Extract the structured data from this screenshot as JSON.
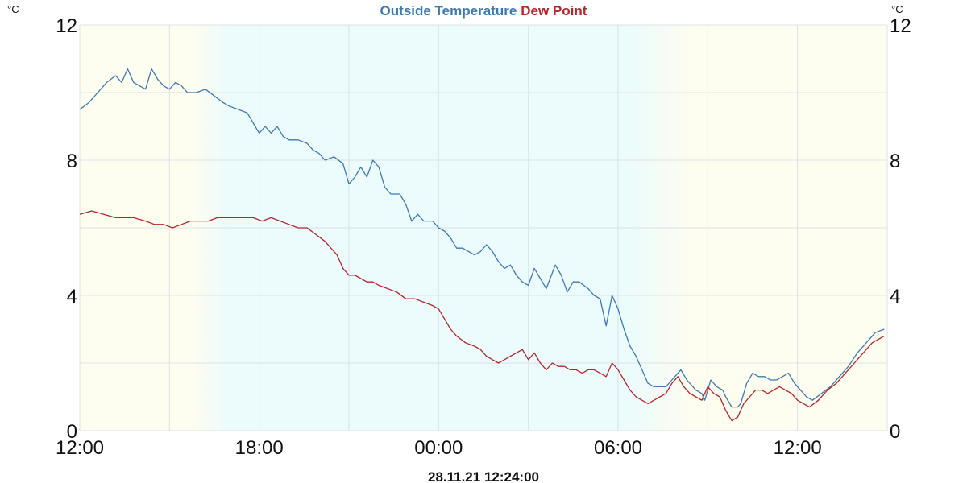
{
  "chart_data": {
    "type": "line",
    "title_parts": [
      {
        "text": "Outside Temperature",
        "color": "#3d79b2"
      },
      {
        "text": "Dew Point",
        "color": "#b3272d"
      }
    ],
    "unit_left": "°C",
    "unit_right": "°C",
    "timestamp": "28.11.21 12:24:00",
    "x_range_hours": [
      0,
      27
    ],
    "ylim": [
      0,
      12
    ],
    "x_ticks": [
      {
        "label": "12:00",
        "hour": 0
      },
      {
        "label": "18:00",
        "hour": 6
      },
      {
        "label": "00:00",
        "hour": 12
      },
      {
        "label": "06:00",
        "hour": 18
      },
      {
        "label": "12:00",
        "hour": 24
      }
    ],
    "y_ticks": [
      {
        "label": "12",
        "value": 12
      },
      {
        "label": "8",
        "value": 8
      },
      {
        "label": "4",
        "value": 4
      },
      {
        "label": "0",
        "value": 0
      }
    ],
    "background_bands": {
      "day_color": "#fdfdf0",
      "night_color": "#ecfbfc",
      "night_start_hour": 4.3,
      "night_end_hour": 19.4
    },
    "grid": true,
    "series": [
      {
        "name": "Outside Temperature",
        "color": "#3d79b2",
        "points": [
          [
            0,
            9.5
          ],
          [
            0.3,
            9.7
          ],
          [
            0.6,
            10.0
          ],
          [
            0.9,
            10.3
          ],
          [
            1.2,
            10.5
          ],
          [
            1.4,
            10.3
          ],
          [
            1.6,
            10.7
          ],
          [
            1.8,
            10.3
          ],
          [
            2.0,
            10.2
          ],
          [
            2.2,
            10.1
          ],
          [
            2.4,
            10.7
          ],
          [
            2.6,
            10.4
          ],
          [
            2.8,
            10.2
          ],
          [
            3.0,
            10.1
          ],
          [
            3.2,
            10.3
          ],
          [
            3.4,
            10.2
          ],
          [
            3.6,
            10.0
          ],
          [
            3.9,
            10.0
          ],
          [
            4.2,
            10.1
          ],
          [
            4.5,
            9.9
          ],
          [
            4.8,
            9.7
          ],
          [
            5.0,
            9.6
          ],
          [
            5.3,
            9.5
          ],
          [
            5.6,
            9.4
          ],
          [
            5.8,
            9.1
          ],
          [
            6.0,
            8.8
          ],
          [
            6.2,
            9.0
          ],
          [
            6.4,
            8.8
          ],
          [
            6.6,
            9.0
          ],
          [
            6.8,
            8.7
          ],
          [
            7.0,
            8.6
          ],
          [
            7.3,
            8.6
          ],
          [
            7.6,
            8.5
          ],
          [
            7.8,
            8.3
          ],
          [
            8.0,
            8.2
          ],
          [
            8.2,
            8.0
          ],
          [
            8.5,
            8.1
          ],
          [
            8.8,
            7.9
          ],
          [
            9.0,
            7.3
          ],
          [
            9.2,
            7.5
          ],
          [
            9.4,
            7.8
          ],
          [
            9.6,
            7.5
          ],
          [
            9.8,
            8.0
          ],
          [
            10.0,
            7.8
          ],
          [
            10.2,
            7.2
          ],
          [
            10.4,
            7.0
          ],
          [
            10.7,
            7.0
          ],
          [
            10.9,
            6.7
          ],
          [
            11.1,
            6.2
          ],
          [
            11.3,
            6.4
          ],
          [
            11.5,
            6.2
          ],
          [
            11.8,
            6.2
          ],
          [
            12.0,
            6.0
          ],
          [
            12.2,
            5.9
          ],
          [
            12.4,
            5.7
          ],
          [
            12.6,
            5.4
          ],
          [
            12.8,
            5.4
          ],
          [
            13.0,
            5.3
          ],
          [
            13.2,
            5.2
          ],
          [
            13.4,
            5.3
          ],
          [
            13.6,
            5.5
          ],
          [
            13.8,
            5.3
          ],
          [
            14.0,
            5.0
          ],
          [
            14.2,
            4.8
          ],
          [
            14.4,
            4.9
          ],
          [
            14.6,
            4.6
          ],
          [
            14.8,
            4.4
          ],
          [
            15.0,
            4.3
          ],
          [
            15.2,
            4.8
          ],
          [
            15.4,
            4.5
          ],
          [
            15.6,
            4.2
          ],
          [
            15.9,
            4.9
          ],
          [
            16.1,
            4.6
          ],
          [
            16.3,
            4.1
          ],
          [
            16.5,
            4.4
          ],
          [
            16.7,
            4.4
          ],
          [
            17.0,
            4.2
          ],
          [
            17.2,
            4.0
          ],
          [
            17.4,
            3.9
          ],
          [
            17.6,
            3.1
          ],
          [
            17.8,
            4.0
          ],
          [
            18.0,
            3.6
          ],
          [
            18.2,
            3.0
          ],
          [
            18.4,
            2.5
          ],
          [
            18.6,
            2.2
          ],
          [
            18.8,
            1.8
          ],
          [
            19.0,
            1.4
          ],
          [
            19.2,
            1.3
          ],
          [
            19.4,
            1.3
          ],
          [
            19.6,
            1.3
          ],
          [
            19.8,
            1.5
          ],
          [
            20.0,
            1.7
          ],
          [
            20.1,
            1.8
          ],
          [
            20.3,
            1.5
          ],
          [
            20.5,
            1.3
          ],
          [
            20.6,
            1.2
          ],
          [
            20.8,
            1.1
          ],
          [
            20.9,
            0.9
          ],
          [
            21.1,
            1.5
          ],
          [
            21.3,
            1.3
          ],
          [
            21.5,
            1.2
          ],
          [
            21.6,
            1.0
          ],
          [
            21.8,
            0.7
          ],
          [
            22.0,
            0.7
          ],
          [
            22.1,
            0.8
          ],
          [
            22.3,
            1.4
          ],
          [
            22.5,
            1.7
          ],
          [
            22.7,
            1.6
          ],
          [
            22.9,
            1.6
          ],
          [
            23.1,
            1.5
          ],
          [
            23.3,
            1.5
          ],
          [
            23.5,
            1.6
          ],
          [
            23.7,
            1.7
          ],
          [
            23.9,
            1.4
          ],
          [
            24.1,
            1.2
          ],
          [
            24.3,
            1.0
          ],
          [
            24.5,
            0.9
          ],
          [
            24.8,
            1.1
          ],
          [
            25.1,
            1.3
          ],
          [
            25.4,
            1.6
          ],
          [
            25.7,
            1.9
          ],
          [
            26.0,
            2.3
          ],
          [
            26.3,
            2.6
          ],
          [
            26.6,
            2.9
          ],
          [
            26.9,
            3.0
          ]
        ]
      },
      {
        "name": "Dew Point",
        "color": "#b3272d",
        "points": [
          [
            0,
            6.4
          ],
          [
            0.4,
            6.5
          ],
          [
            0.8,
            6.4
          ],
          [
            1.2,
            6.3
          ],
          [
            1.5,
            6.3
          ],
          [
            1.8,
            6.3
          ],
          [
            2.2,
            6.2
          ],
          [
            2.5,
            6.1
          ],
          [
            2.8,
            6.1
          ],
          [
            3.1,
            6.0
          ],
          [
            3.4,
            6.1
          ],
          [
            3.7,
            6.2
          ],
          [
            4.0,
            6.2
          ],
          [
            4.3,
            6.2
          ],
          [
            4.6,
            6.3
          ],
          [
            5.0,
            6.3
          ],
          [
            5.4,
            6.3
          ],
          [
            5.8,
            6.3
          ],
          [
            6.1,
            6.2
          ],
          [
            6.4,
            6.3
          ],
          [
            6.7,
            6.2
          ],
          [
            7.0,
            6.1
          ],
          [
            7.3,
            6.0
          ],
          [
            7.6,
            6.0
          ],
          [
            7.9,
            5.8
          ],
          [
            8.2,
            5.6
          ],
          [
            8.4,
            5.4
          ],
          [
            8.6,
            5.2
          ],
          [
            8.8,
            4.8
          ],
          [
            9.0,
            4.6
          ],
          [
            9.2,
            4.6
          ],
          [
            9.4,
            4.5
          ],
          [
            9.6,
            4.4
          ],
          [
            9.8,
            4.4
          ],
          [
            10.0,
            4.3
          ],
          [
            10.3,
            4.2
          ],
          [
            10.6,
            4.1
          ],
          [
            10.9,
            3.9
          ],
          [
            11.2,
            3.9
          ],
          [
            11.5,
            3.8
          ],
          [
            11.8,
            3.7
          ],
          [
            12.0,
            3.6
          ],
          [
            12.2,
            3.3
          ],
          [
            12.4,
            3.0
          ],
          [
            12.6,
            2.8
          ],
          [
            12.9,
            2.6
          ],
          [
            13.2,
            2.5
          ],
          [
            13.4,
            2.4
          ],
          [
            13.6,
            2.2
          ],
          [
            13.8,
            2.1
          ],
          [
            14.0,
            2.0
          ],
          [
            14.2,
            2.1
          ],
          [
            14.4,
            2.2
          ],
          [
            14.6,
            2.3
          ],
          [
            14.8,
            2.4
          ],
          [
            15.0,
            2.1
          ],
          [
            15.2,
            2.3
          ],
          [
            15.4,
            2.0
          ],
          [
            15.6,
            1.8
          ],
          [
            15.8,
            2.0
          ],
          [
            16.0,
            1.9
          ],
          [
            16.2,
            1.9
          ],
          [
            16.4,
            1.8
          ],
          [
            16.6,
            1.8
          ],
          [
            16.8,
            1.7
          ],
          [
            17.0,
            1.8
          ],
          [
            17.2,
            1.8
          ],
          [
            17.4,
            1.7
          ],
          [
            17.6,
            1.6
          ],
          [
            17.8,
            2.0
          ],
          [
            18.0,
            1.8
          ],
          [
            18.2,
            1.5
          ],
          [
            18.4,
            1.2
          ],
          [
            18.6,
            1.0
          ],
          [
            18.8,
            0.9
          ],
          [
            19.0,
            0.8
          ],
          [
            19.2,
            0.9
          ],
          [
            19.4,
            1.0
          ],
          [
            19.6,
            1.1
          ],
          [
            19.8,
            1.4
          ],
          [
            20.0,
            1.6
          ],
          [
            20.2,
            1.3
          ],
          [
            20.4,
            1.1
          ],
          [
            20.6,
            1.0
          ],
          [
            20.8,
            0.9
          ],
          [
            21.0,
            1.3
          ],
          [
            21.2,
            1.1
          ],
          [
            21.4,
            1.0
          ],
          [
            21.6,
            0.6
          ],
          [
            21.8,
            0.3
          ],
          [
            22.0,
            0.4
          ],
          [
            22.2,
            0.8
          ],
          [
            22.4,
            1.0
          ],
          [
            22.6,
            1.2
          ],
          [
            22.8,
            1.2
          ],
          [
            23.0,
            1.1
          ],
          [
            23.2,
            1.2
          ],
          [
            23.4,
            1.3
          ],
          [
            23.6,
            1.2
          ],
          [
            23.8,
            1.1
          ],
          [
            24.0,
            0.9
          ],
          [
            24.2,
            0.8
          ],
          [
            24.4,
            0.7
          ],
          [
            24.7,
            0.9
          ],
          [
            25.0,
            1.2
          ],
          [
            25.3,
            1.4
          ],
          [
            25.6,
            1.7
          ],
          [
            25.9,
            2.0
          ],
          [
            26.2,
            2.3
          ],
          [
            26.5,
            2.6
          ],
          [
            26.9,
            2.8
          ]
        ]
      }
    ]
  }
}
